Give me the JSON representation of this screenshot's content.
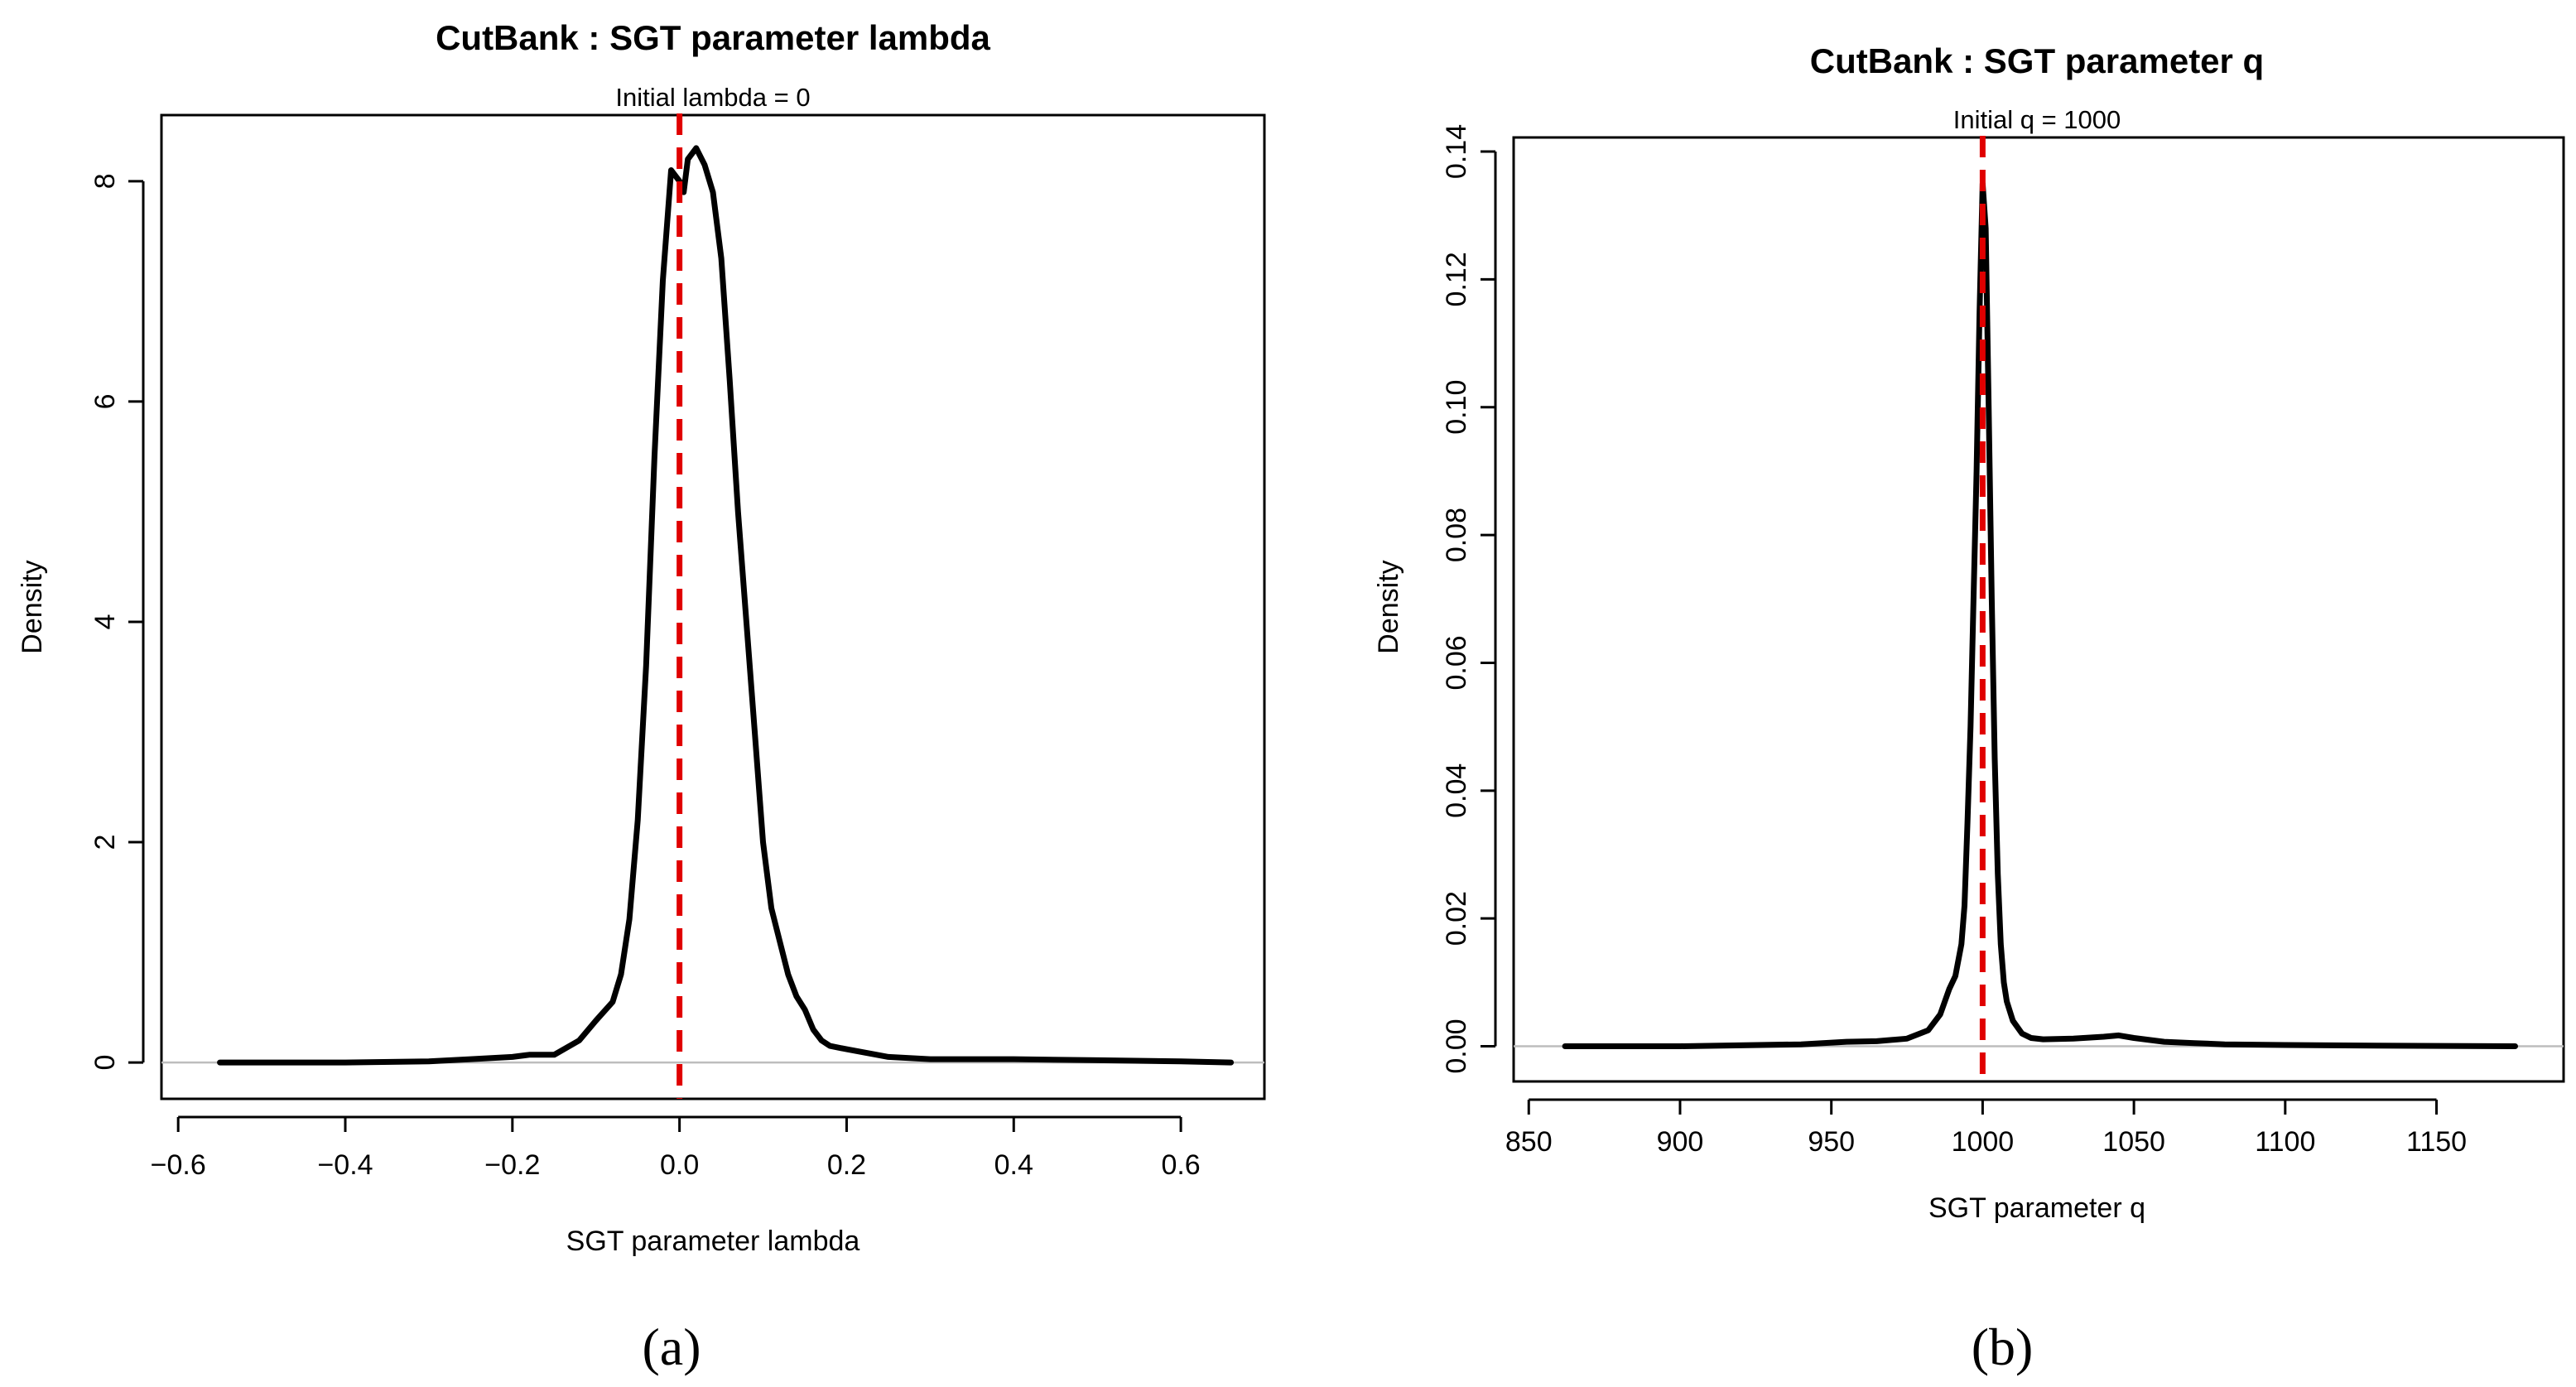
{
  "chart_data": [
    {
      "type": "line",
      "panel_label": "(a)",
      "title": "CutBank : SGT parameter lambda",
      "subtitle": "Initial lambda = 0",
      "xlabel": "SGT parameter lambda",
      "ylabel": "Density",
      "xlim": [
        -0.62,
        0.7
      ],
      "ylim": [
        -0.33,
        8.6
      ],
      "xticks": [
        -0.6,
        -0.4,
        -0.2,
        0.0,
        0.2,
        0.4,
        0.6
      ],
      "xtick_labels": [
        "−0.6",
        "−0.4",
        "−0.2",
        "0.0",
        "0.2",
        "0.4",
        "0.6"
      ],
      "yticks": [
        0,
        2,
        4,
        6,
        8
      ],
      "ytick_labels": [
        "0",
        "2",
        "4",
        "6",
        "8"
      ],
      "reference_line": {
        "x": 0,
        "color": "#e00000",
        "style": "dashed"
      },
      "baseline_y": 0,
      "series": [
        {
          "name": "density",
          "x": [
            -0.55,
            -0.4,
            -0.3,
            -0.25,
            -0.2,
            -0.18,
            -0.15,
            -0.12,
            -0.1,
            -0.08,
            -0.07,
            -0.06,
            -0.05,
            -0.04,
            -0.03,
            -0.02,
            -0.01,
            0.0,
            0.005,
            0.01,
            0.02,
            0.03,
            0.04,
            0.05,
            0.06,
            0.07,
            0.08,
            0.09,
            0.1,
            0.11,
            0.12,
            0.13,
            0.14,
            0.15,
            0.16,
            0.17,
            0.18,
            0.2,
            0.25,
            0.3,
            0.4,
            0.5,
            0.6,
            0.66
          ],
          "y": [
            0.0,
            0.0,
            0.01,
            0.03,
            0.05,
            0.07,
            0.07,
            0.2,
            0.38,
            0.55,
            0.8,
            1.3,
            2.2,
            3.6,
            5.5,
            7.1,
            8.1,
            8.0,
            7.9,
            8.2,
            8.3,
            8.15,
            7.9,
            7.3,
            6.2,
            5.0,
            4.0,
            3.0,
            2.0,
            1.4,
            1.1,
            0.8,
            0.6,
            0.48,
            0.3,
            0.2,
            0.15,
            0.12,
            0.05,
            0.03,
            0.03,
            0.02,
            0.01,
            0.0
          ]
        }
      ]
    },
    {
      "type": "line",
      "panel_label": "(b)",
      "title": "CutBank : SGT parameter q",
      "subtitle": "Initial q = 1000",
      "xlabel": "SGT parameter q",
      "ylabel": "Density",
      "xlim": [
        845,
        1192
      ],
      "ylim": [
        -0.0055,
        0.1422
      ],
      "xticks": [
        850,
        900,
        950,
        1000,
        1050,
        1100,
        1150
      ],
      "xtick_labels": [
        "850",
        "900",
        "950",
        "1000",
        "1050",
        "1100",
        "1150"
      ],
      "yticks": [
        0.0,
        0.02,
        0.04,
        0.06,
        0.08,
        0.1,
        0.12,
        0.14
      ],
      "ytick_labels": [
        "0.00",
        "0.02",
        "0.04",
        "0.06",
        "0.08",
        "0.10",
        "0.12",
        "0.14"
      ],
      "reference_line": {
        "x": 1000,
        "color": "#e00000",
        "style": "dashed"
      },
      "baseline_y": 0,
      "series": [
        {
          "name": "density",
          "x": [
            862,
            900,
            940,
            955,
            965,
            975,
            982,
            986,
            989,
            991,
            993,
            994,
            995,
            996,
            997,
            998,
            999,
            1000,
            1001,
            1002,
            1003,
            1004,
            1005,
            1006,
            1007,
            1008,
            1010,
            1013,
            1016,
            1020,
            1030,
            1040,
            1045,
            1050,
            1060,
            1070,
            1080,
            1100,
            1130,
            1176
          ],
          "y": [
            0.0,
            0.0,
            0.0003,
            0.0007,
            0.0008,
            0.0012,
            0.0025,
            0.005,
            0.009,
            0.011,
            0.016,
            0.022,
            0.035,
            0.05,
            0.07,
            0.09,
            0.115,
            0.135,
            0.128,
            0.1,
            0.07,
            0.045,
            0.027,
            0.016,
            0.01,
            0.007,
            0.004,
            0.002,
            0.0013,
            0.0011,
            0.0012,
            0.0015,
            0.0017,
            0.0013,
            0.0007,
            0.0005,
            0.0003,
            0.0002,
            0.0001,
            0.0
          ]
        }
      ]
    }
  ]
}
